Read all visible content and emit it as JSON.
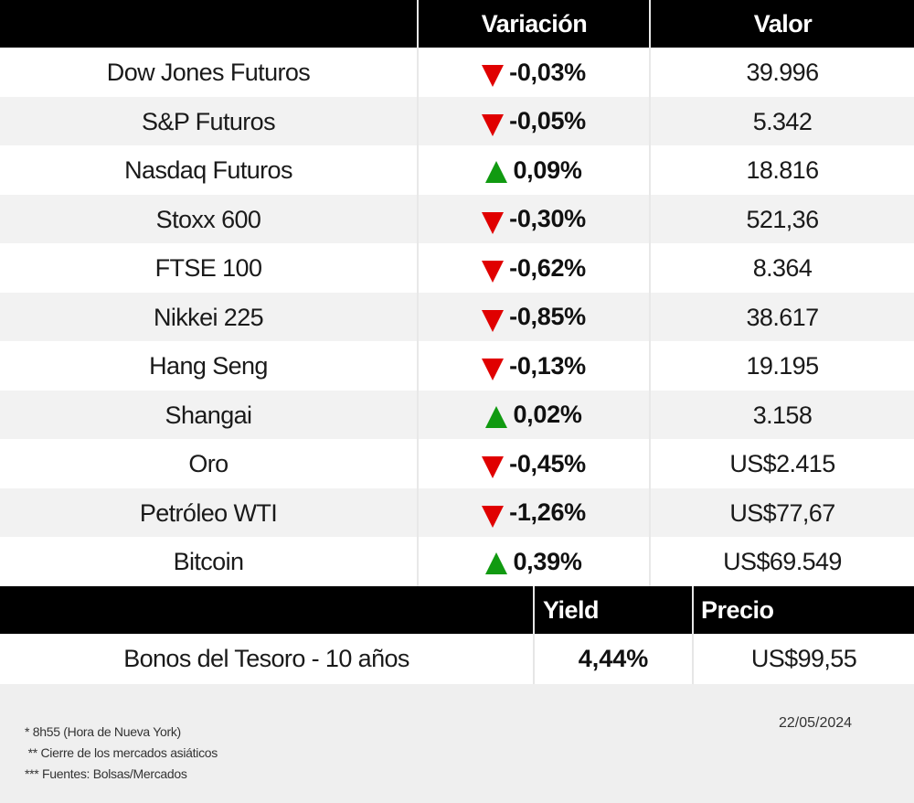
{
  "header": {
    "col_name": "",
    "col_variation": "Variación",
    "col_value": "Valor"
  },
  "rows": [
    {
      "name": "Dow Jones Futuros",
      "direction": "down",
      "variation": "-0,03%",
      "value": "39.996"
    },
    {
      "name": "S&P Futuros",
      "direction": "down",
      "variation": "-0,05%",
      "value": "5.342"
    },
    {
      "name": "Nasdaq Futuros",
      "direction": "up",
      "variation": "0,09%",
      "value": "18.816"
    },
    {
      "name": "Stoxx 600",
      "direction": "down",
      "variation": "-0,30%",
      "value": "521,36"
    },
    {
      "name": "FTSE 100",
      "direction": "down",
      "variation": "-0,62%",
      "value": "8.364"
    },
    {
      "name": "Nikkei 225",
      "direction": "down",
      "variation": "-0,85%",
      "value": "38.617"
    },
    {
      "name": "Hang Seng",
      "direction": "down",
      "variation": "-0,13%",
      "value": "19.195"
    },
    {
      "name": "Shangai",
      "direction": "up",
      "variation": "0,02%",
      "value": "3.158"
    },
    {
      "name": "Oro",
      "direction": "down",
      "variation": "-0,45%",
      "value": "US$2.415"
    },
    {
      "name": "Petróleo WTI",
      "direction": "down",
      "variation": "-1,26%",
      "value": "US$77,67"
    },
    {
      "name": "Bitcoin",
      "direction": "up",
      "variation": "0,39%",
      "value": "US$69.549"
    }
  ],
  "bonds_header": {
    "col_yield": "Yield",
    "col_price": "Precio"
  },
  "bond": {
    "name": "Bonos del Tesoro - 10 años",
    "yield": "4,44%",
    "price": "US$99,55"
  },
  "footer": {
    "notes": [
      "* 8h55  (Hora de Nueva York)",
      " ** Cierre de los mercados asiáticos",
      "*** Fuentes: Bolsas/Mercados"
    ],
    "date": "22/05/2024"
  },
  "colors": {
    "down": "#e00000",
    "up": "#119a11",
    "header_bg": "#000000",
    "stripe": "#f2f2f2"
  }
}
